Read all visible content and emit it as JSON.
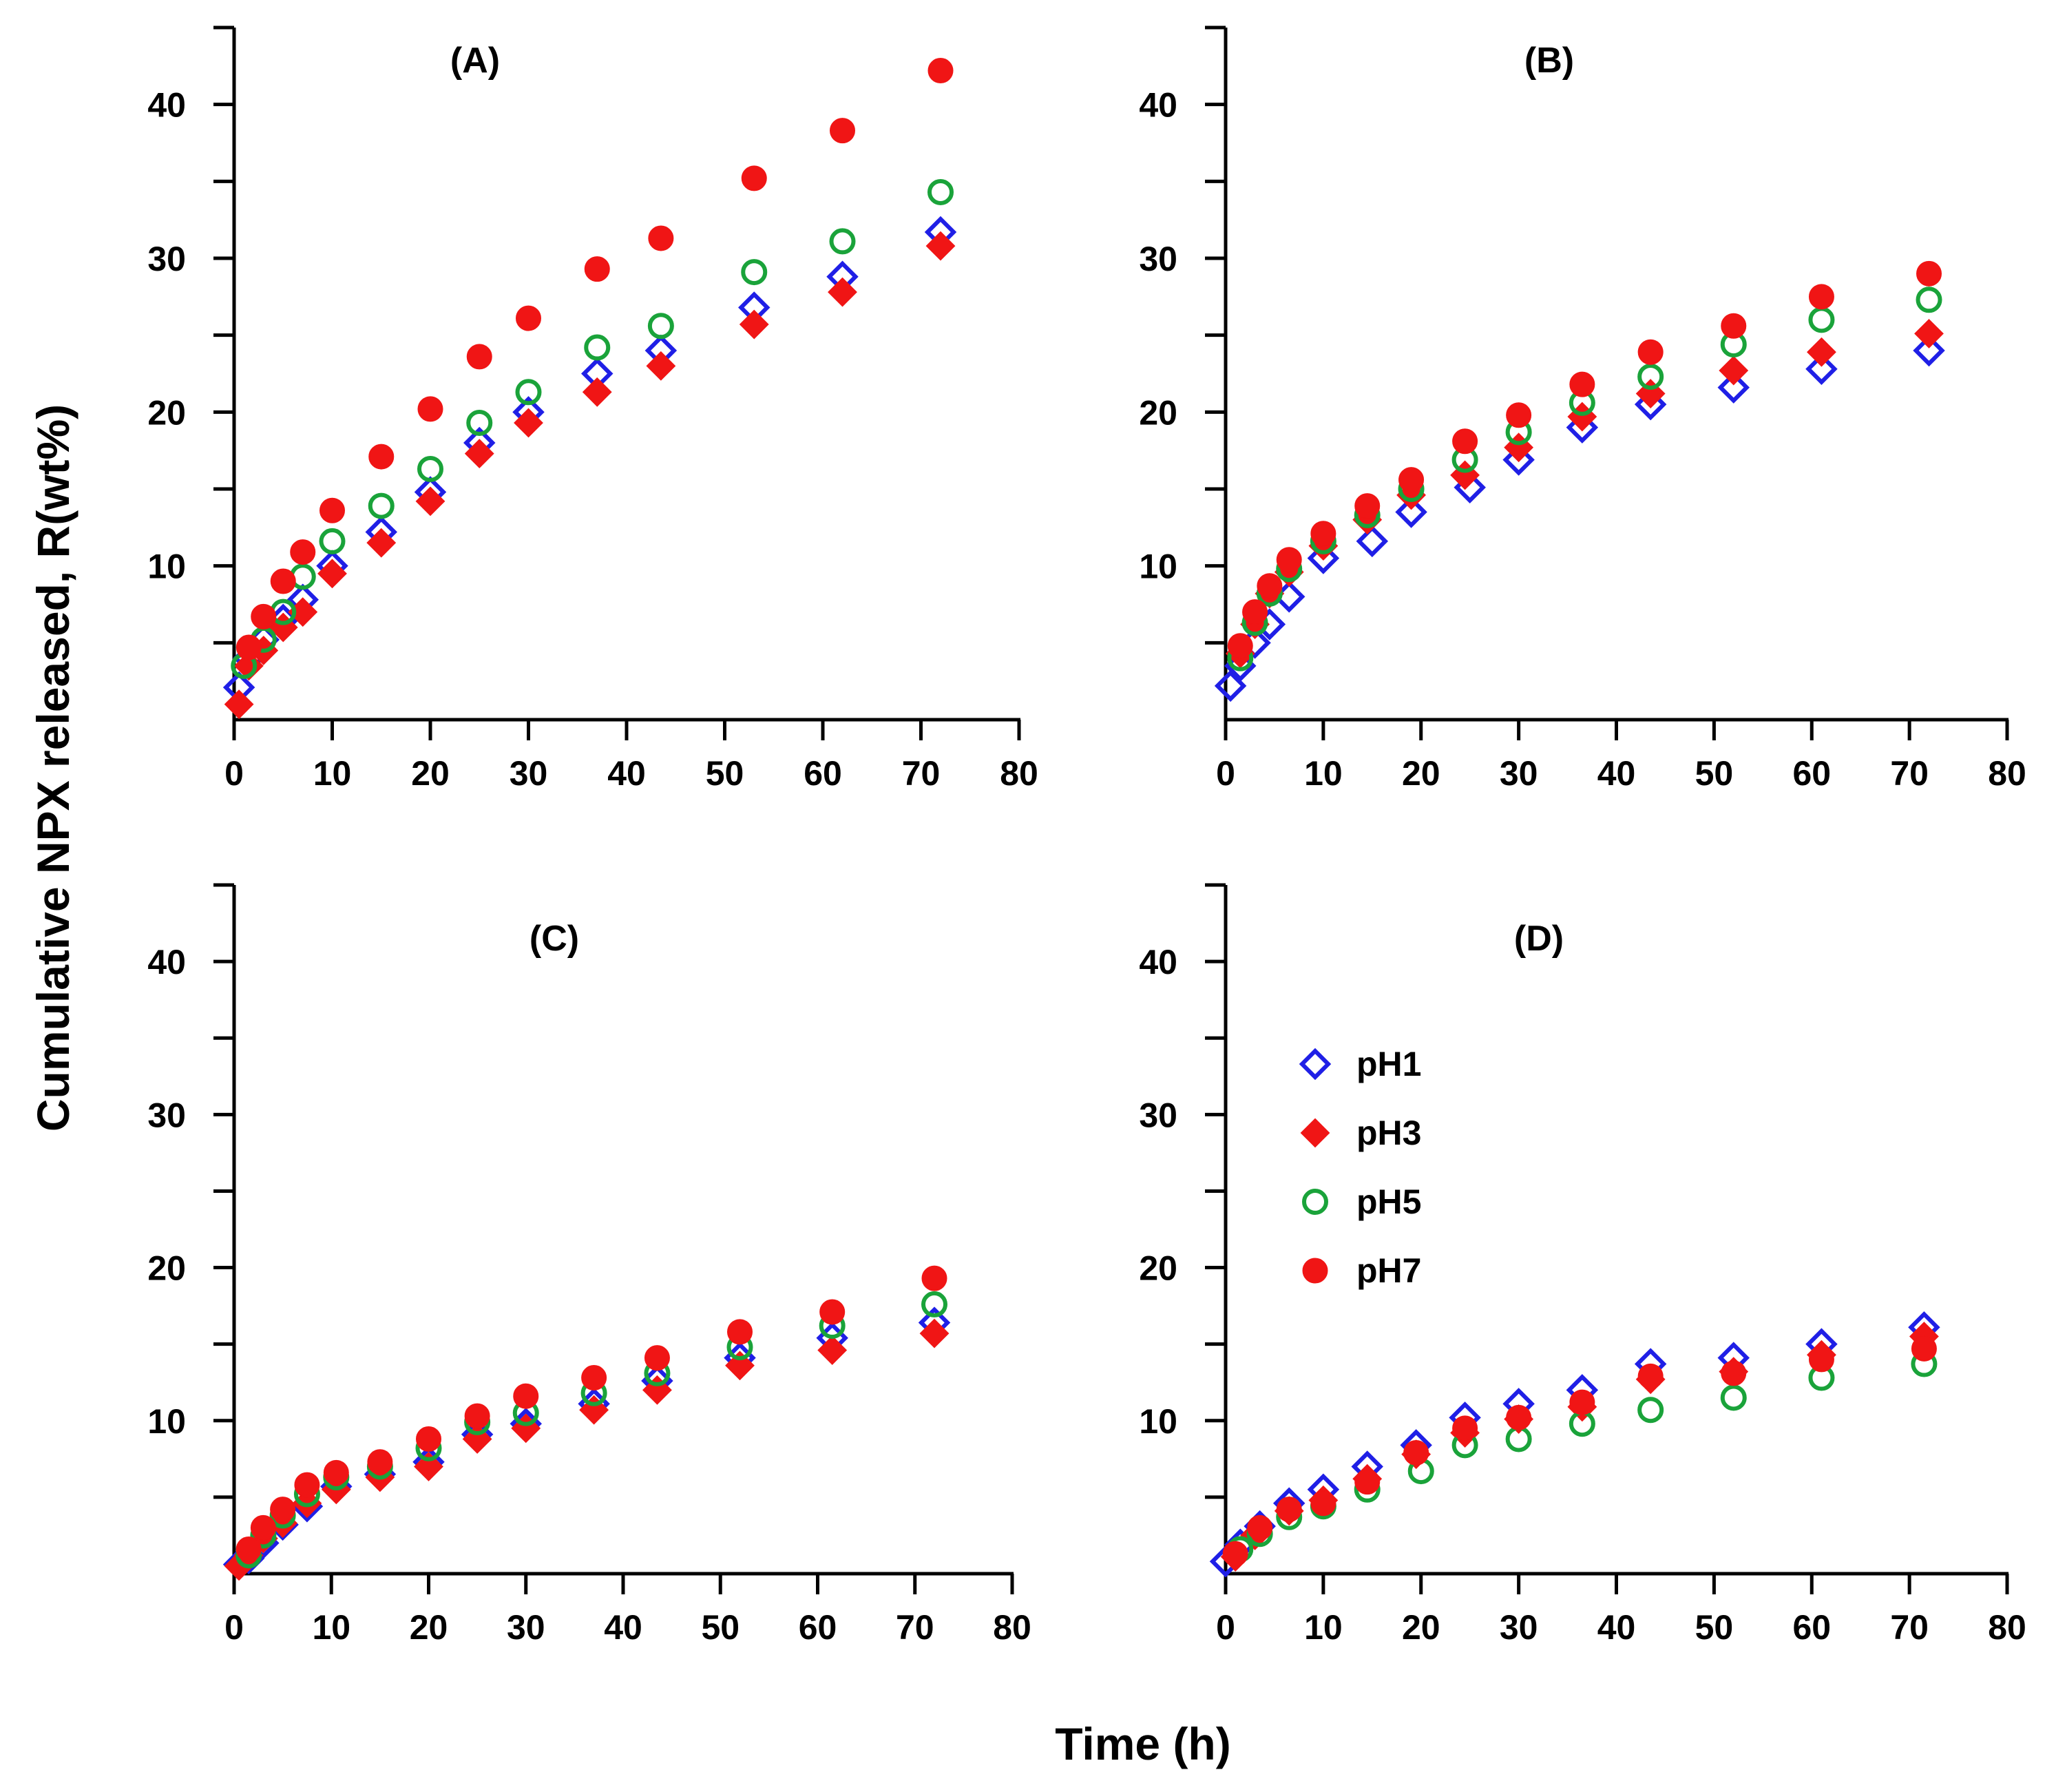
{
  "chart_data": {
    "type": "scatter",
    "ylabel": "Cumulative NPX released, R(wt%)",
    "xlabel": "Time (h)",
    "xlim": [
      0,
      80
    ],
    "ylim": [
      0,
      45
    ],
    "xticks": [
      "0",
      "10",
      "20",
      "30",
      "40",
      "50",
      "60",
      "70",
      "80"
    ],
    "yticks": [
      "10",
      "20",
      "30",
      "40"
    ],
    "legend": {
      "placement": "panel D, upper-left",
      "entries": [
        {
          "name": "pH1",
          "marker": "diamond-open",
          "color": "#1f1fe6"
        },
        {
          "name": "pH3",
          "marker": "diamond-filled",
          "color": "#f01515"
        },
        {
          "name": "pH5",
          "marker": "circle-open",
          "color": "#1aa33a"
        },
        {
          "name": "pH7",
          "marker": "circle-filled",
          "color": "#f01515"
        }
      ]
    },
    "panels": [
      {
        "label": "(A)",
        "series": [
          {
            "name": "pH1",
            "x": [
              0.5,
              1.5,
              3,
              5,
              7,
              10,
              15,
              20,
              25,
              30,
              37,
              43.5,
              53,
              62,
              72
            ],
            "y": [
              2.1,
              4.0,
              5.2,
              6.5,
              7.8,
              10.0,
              12.2,
              14.8,
              18.0,
              20.0,
              22.5,
              24.0,
              26.8,
              28.8,
              31.7
            ]
          },
          {
            "name": "pH3",
            "x": [
              0.5,
              1.5,
              3,
              5,
              7,
              10,
              15,
              20,
              25,
              30,
              37,
              43.5,
              53,
              62,
              72
            ],
            "y": [
              1.0,
              3.5,
              4.5,
              6.0,
              7.0,
              9.5,
              11.5,
              14.2,
              17.3,
              19.3,
              21.3,
              23.0,
              25.7,
              27.8,
              30.8
            ]
          },
          {
            "name": "pH5",
            "x": [
              1,
              3,
              5,
              7,
              10,
              15,
              20,
              25,
              30,
              37,
              43.5,
              53,
              62,
              72
            ],
            "y": [
              3.5,
              5.2,
              7.0,
              9.3,
              11.6,
              13.9,
              16.3,
              19.3,
              21.3,
              24.2,
              25.6,
              29.1,
              31.1,
              34.3
            ]
          },
          {
            "name": "pH7",
            "x": [
              1.5,
              3,
              5,
              7,
              10,
              15,
              20,
              25,
              30,
              37,
              43.5,
              53,
              62,
              72
            ],
            "y": [
              4.7,
              6.7,
              9.0,
              10.9,
              13.6,
              17.1,
              20.2,
              23.6,
              26.1,
              29.3,
              31.3,
              35.2,
              38.3,
              42.2
            ]
          }
        ]
      },
      {
        "label": "(B)",
        "series": [
          {
            "name": "pH1",
            "x": [
              0.5,
              1.5,
              3,
              4.5,
              6.5,
              10,
              15,
              19,
              25,
              30,
              36.5,
              43.5,
              52,
              61,
              72
            ],
            "y": [
              2.2,
              3.5,
              5.0,
              6.2,
              8.0,
              10.5,
              11.6,
              13.5,
              15.1,
              16.9,
              19.0,
              20.5,
              21.6,
              22.8,
              24.0
            ]
          },
          {
            "name": "pH3",
            "x": [
              1.5,
              3,
              4.5,
              6.5,
              10,
              14.5,
              19,
              24.5,
              30,
              36.5,
              43.5,
              52,
              61,
              72
            ],
            "y": [
              4.3,
              6.2,
              8.2,
              9.6,
              11.3,
              13.0,
              14.6,
              15.9,
              17.7,
              19.7,
              21.2,
              22.7,
              23.9,
              25.1
            ]
          },
          {
            "name": "pH5",
            "x": [
              1.5,
              3,
              4.5,
              6.5,
              10,
              14.5,
              19,
              24.5,
              30,
              36.5,
              43.5,
              52,
              61,
              72
            ],
            "y": [
              4.0,
              6.3,
              8.2,
              9.8,
              11.6,
              13.3,
              15.0,
              16.9,
              18.7,
              20.6,
              22.3,
              24.4,
              26.0,
              27.3
            ]
          },
          {
            "name": "pH7",
            "x": [
              1.5,
              3,
              4.5,
              6.5,
              10,
              14.5,
              19,
              24.5,
              30,
              36.5,
              43.5,
              52,
              61,
              72
            ],
            "y": [
              4.8,
              7.0,
              8.7,
              10.4,
              12.1,
              13.9,
              15.6,
              18.1,
              19.8,
              21.8,
              23.9,
              25.6,
              27.5,
              29.0
            ]
          }
        ]
      },
      {
        "label": "(C)",
        "series": [
          {
            "name": "pH1",
            "x": [
              0.5,
              1.5,
              3,
              5,
              7.5,
              10.5,
              15,
              20,
              25,
              30,
              37,
              43.5,
              52,
              61.5,
              72
            ],
            "y": [
              0.6,
              1.0,
              2.0,
              3.2,
              4.4,
              5.7,
              6.5,
              7.3,
              9.1,
              9.8,
              11.1,
              12.6,
              14.1,
              15.4,
              16.4
            ]
          },
          {
            "name": "pH3",
            "x": [
              0.5,
              1.5,
              3,
              5,
              7.5,
              10.5,
              15,
              20,
              25,
              30,
              37,
              43.5,
              52,
              61.5,
              72
            ],
            "y": [
              0.5,
              1.2,
              2.3,
              3.3,
              4.6,
              5.5,
              6.3,
              7.0,
              8.8,
              9.5,
              10.7,
              12.0,
              13.6,
              14.6,
              15.7
            ]
          },
          {
            "name": "pH5",
            "x": [
              1.5,
              3,
              5,
              7.5,
              10.5,
              15,
              20,
              25,
              30,
              37,
              43.5,
              52,
              61.5,
              72
            ],
            "y": [
              1.2,
              2.5,
              3.8,
              5.2,
              6.3,
              7.0,
              8.2,
              9.9,
              10.5,
              11.8,
              13.1,
              14.8,
              16.2,
              17.6
            ]
          },
          {
            "name": "pH7",
            "x": [
              1.5,
              3,
              5,
              7.5,
              10.5,
              15,
              20,
              25,
              30,
              37,
              43.5,
              52,
              61.5,
              72
            ],
            "y": [
              1.6,
              3.0,
              4.2,
              5.8,
              6.6,
              7.3,
              8.8,
              10.3,
              11.6,
              12.8,
              14.1,
              15.8,
              17.1,
              19.3
            ]
          }
        ]
      },
      {
        "label": "(D)",
        "series": [
          {
            "name": "pH1",
            "x": [
              0,
              1.5,
              3.5,
              6.5,
              10,
              14.5,
              19.5,
              24.5,
              30,
              36.5,
              43.5,
              52,
              61,
              71.5
            ],
            "y": [
              0.8,
              1.9,
              3.1,
              4.6,
              5.5,
              7.0,
              8.4,
              10.2,
              11.1,
              12.0,
              13.7,
              14.1,
              15.0,
              16.1
            ]
          },
          {
            "name": "pH3",
            "x": [
              1,
              3,
              6.5,
              10,
              14.5,
              19.5,
              24.5,
              30,
              36.5,
              43.5,
              52,
              61,
              71.5
            ],
            "y": [
              1.1,
              2.5,
              4.1,
              4.8,
              6.2,
              7.8,
              9.2,
              10.1,
              10.9,
              12.7,
              13.2,
              14.3,
              15.5
            ]
          },
          {
            "name": "pH5",
            "x": [
              1.5,
              3.5,
              6.5,
              10,
              14.5,
              20,
              24.5,
              30,
              36.5,
              43.5,
              52,
              61,
              71.5
            ],
            "y": [
              1.6,
              2.6,
              3.7,
              4.4,
              5.5,
              6.7,
              8.4,
              8.8,
              9.8,
              10.7,
              11.5,
              12.8,
              13.7
            ]
          },
          {
            "name": "pH7",
            "x": [
              1,
              3.5,
              6.5,
              10,
              14.5,
              19.5,
              24.5,
              30,
              36.5,
              43.5,
              52,
              61,
              71.5
            ],
            "y": [
              1.3,
              3.0,
              4.2,
              4.6,
              6.0,
              7.9,
              9.5,
              10.2,
              11.2,
              12.9,
              13.1,
              14.0,
              14.7
            ]
          }
        ]
      }
    ]
  }
}
